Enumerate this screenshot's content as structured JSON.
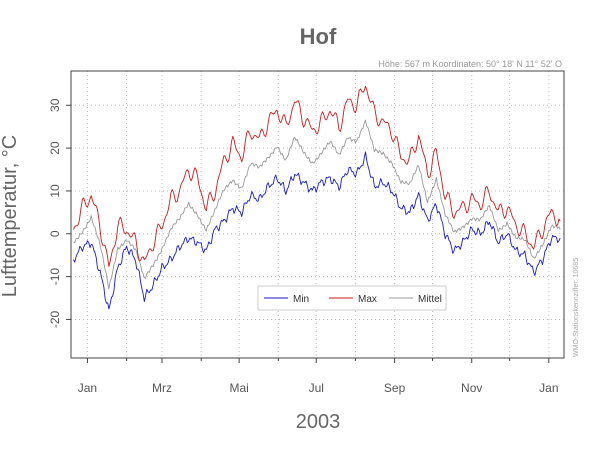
{
  "chart_data": {
    "type": "line",
    "title": "Hof",
    "subtitle": "Höhe: 567 m    Koordinaten: 50° 18' N   11° 52' O",
    "xlabel": "2003",
    "ylabel": "Lufttemperatur, °C",
    "side_note": "WMO-Stationskennziffer: 10685",
    "xlim": [
      "2002-12-19",
      "2004-01-13"
    ],
    "ylim": [
      -29,
      38
    ],
    "grid": true,
    "legend_position": "lower-center",
    "x_ticks": [
      {
        "date": "2003-01-01",
        "label": "Jan"
      },
      {
        "date": "2003-03-01",
        "label": "Mrz"
      },
      {
        "date": "2003-05-01",
        "label": "Mai"
      },
      {
        "date": "2003-07-01",
        "label": "Jul"
      },
      {
        "date": "2003-09-01",
        "label": "Sep"
      },
      {
        "date": "2003-11-01",
        "label": "Nov"
      },
      {
        "date": "2004-01-01",
        "label": "Jan"
      }
    ],
    "x_minor_ticks": [
      "2003-02-01",
      "2003-04-01",
      "2003-06-01",
      "2003-08-01",
      "2003-10-01",
      "2003-12-01"
    ],
    "y_ticks": [
      -20,
      -10,
      0,
      10,
      20,
      30
    ],
    "series": [
      {
        "name": "Min",
        "color": "#1a1acc",
        "dates": [
          "2002-12-21",
          "2002-12-28",
          "2003-01-04",
          "2003-01-11",
          "2003-01-18",
          "2003-01-25",
          "2003-02-01",
          "2003-02-08",
          "2003-02-15",
          "2003-02-22",
          "2003-03-01",
          "2003-03-08",
          "2003-03-15",
          "2003-03-22",
          "2003-03-29",
          "2003-04-05",
          "2003-04-12",
          "2003-04-19",
          "2003-04-26",
          "2003-05-03",
          "2003-05-10",
          "2003-05-17",
          "2003-05-24",
          "2003-05-31",
          "2003-06-07",
          "2003-06-14",
          "2003-06-21",
          "2003-06-28",
          "2003-07-05",
          "2003-07-12",
          "2003-07-19",
          "2003-07-26",
          "2003-08-02",
          "2003-08-09",
          "2003-08-16",
          "2003-08-23",
          "2003-08-30",
          "2003-09-06",
          "2003-09-13",
          "2003-09-20",
          "2003-09-27",
          "2003-10-04",
          "2003-10-11",
          "2003-10-18",
          "2003-10-25",
          "2003-11-01",
          "2003-11-08",
          "2003-11-15",
          "2003-11-22",
          "2003-11-29",
          "2003-12-06",
          "2003-12-13",
          "2003-12-20",
          "2003-12-27",
          "2004-01-03",
          "2004-01-10"
        ],
        "values": [
          -6,
          -3,
          -2,
          -9,
          -18,
          -8,
          -3,
          -6,
          -15,
          -12,
          -8,
          -6,
          -3,
          -1,
          -2,
          -4,
          1,
          3,
          6,
          5,
          9,
          8,
          11,
          13,
          10,
          14,
          12,
          10,
          12,
          13,
          11,
          15,
          14,
          18,
          11,
          12,
          10,
          6,
          5,
          9,
          3,
          7,
          0,
          -4,
          -2,
          1,
          0,
          3,
          -2,
          0,
          -4,
          -5,
          -9,
          -6,
          -1,
          -1
        ]
      },
      {
        "name": "Max",
        "color": "#cc1a1a",
        "dates": [
          "2002-12-21",
          "2002-12-28",
          "2003-01-04",
          "2003-01-11",
          "2003-01-18",
          "2003-01-25",
          "2003-02-01",
          "2003-02-08",
          "2003-02-15",
          "2003-02-22",
          "2003-03-01",
          "2003-03-08",
          "2003-03-15",
          "2003-03-22",
          "2003-03-29",
          "2003-04-05",
          "2003-04-12",
          "2003-04-19",
          "2003-04-26",
          "2003-05-03",
          "2003-05-10",
          "2003-05-17",
          "2003-05-24",
          "2003-05-31",
          "2003-06-07",
          "2003-06-14",
          "2003-06-21",
          "2003-06-28",
          "2003-07-05",
          "2003-07-12",
          "2003-07-19",
          "2003-07-26",
          "2003-08-02",
          "2003-08-09",
          "2003-08-16",
          "2003-08-23",
          "2003-08-30",
          "2003-09-06",
          "2003-09-13",
          "2003-09-20",
          "2003-09-27",
          "2003-10-04",
          "2003-10-11",
          "2003-10-18",
          "2003-10-25",
          "2003-11-01",
          "2003-11-08",
          "2003-11-15",
          "2003-11-22",
          "2003-11-29",
          "2003-12-06",
          "2003-12-13",
          "2003-12-20",
          "2003-12-27",
          "2004-01-03",
          "2004-01-10"
        ],
        "values": [
          1,
          6,
          9,
          2,
          -8,
          2,
          1,
          -2,
          -7,
          -2,
          2,
          8,
          10,
          15,
          13,
          6,
          10,
          17,
          21,
          18,
          24,
          22,
          26,
          29,
          25,
          31,
          27,
          24,
          26,
          29,
          25,
          31,
          30,
          35,
          28,
          26,
          24,
          18,
          17,
          23,
          14,
          19,
          9,
          5,
          6,
          8,
          7,
          10,
          5,
          6,
          2,
          0,
          -3,
          1,
          5,
          3
        ]
      },
      {
        "name": "Mittel",
        "color": "#999999",
        "dates": [
          "2002-12-21",
          "2002-12-28",
          "2003-01-04",
          "2003-01-11",
          "2003-01-18",
          "2003-01-25",
          "2003-02-01",
          "2003-02-08",
          "2003-02-15",
          "2003-02-22",
          "2003-03-01",
          "2003-03-08",
          "2003-03-15",
          "2003-03-22",
          "2003-03-29",
          "2003-04-05",
          "2003-04-12",
          "2003-04-19",
          "2003-04-26",
          "2003-05-03",
          "2003-05-10",
          "2003-05-17",
          "2003-05-24",
          "2003-05-31",
          "2003-06-07",
          "2003-06-14",
          "2003-06-21",
          "2003-06-28",
          "2003-07-05",
          "2003-07-12",
          "2003-07-19",
          "2003-07-26",
          "2003-08-02",
          "2003-08-09",
          "2003-08-16",
          "2003-08-23",
          "2003-08-30",
          "2003-09-06",
          "2003-09-13",
          "2003-09-20",
          "2003-09-27",
          "2003-10-04",
          "2003-10-11",
          "2003-10-18",
          "2003-10-25",
          "2003-11-01",
          "2003-11-08",
          "2003-11-15",
          "2003-11-22",
          "2003-11-29",
          "2003-12-06",
          "2003-12-13",
          "2003-12-20",
          "2003-12-27",
          "2004-01-03",
          "2004-01-10"
        ],
        "values": [
          -2,
          1,
          4,
          -3,
          -13,
          -3,
          -1,
          -4,
          -11,
          -7,
          -3,
          1,
          3,
          7,
          5,
          1,
          5,
          10,
          13,
          11,
          16,
          15,
          18,
          21,
          17,
          22,
          19,
          17,
          19,
          21,
          18,
          23,
          22,
          26,
          19,
          19,
          17,
          12,
          11,
          16,
          8,
          13,
          4,
          0,
          2,
          4,
          3,
          6,
          1,
          3,
          -1,
          -2,
          -6,
          -2,
          2,
          1
        ]
      }
    ]
  }
}
